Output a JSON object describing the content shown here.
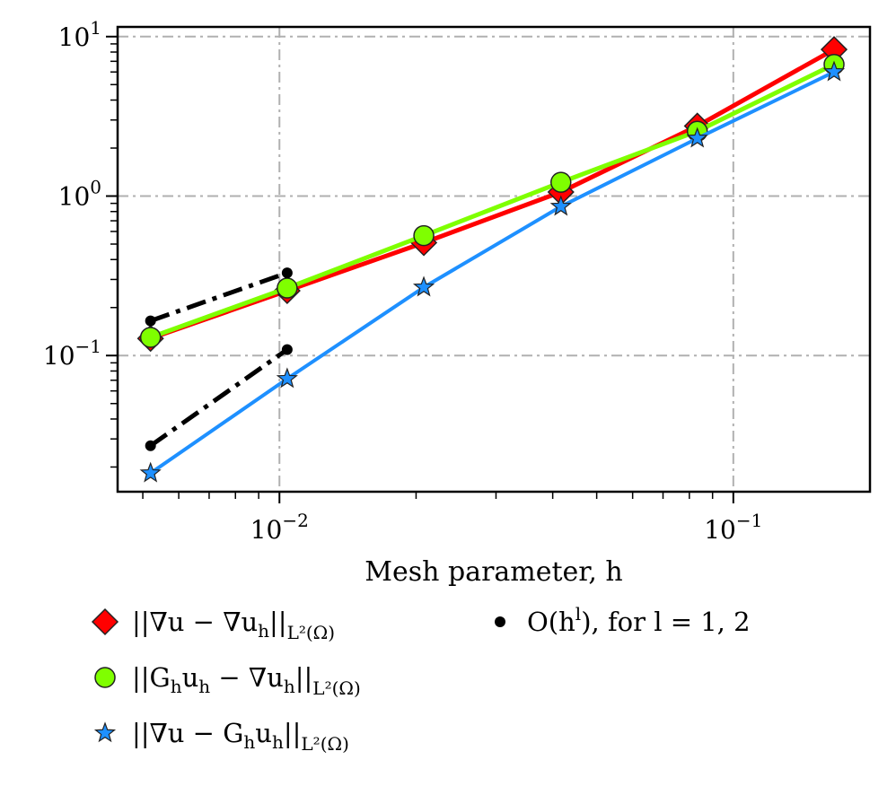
{
  "chart_data": {
    "type": "line",
    "xscale": "log",
    "yscale": "log",
    "xlim": [
      0.0044,
      0.2
    ],
    "ylim": [
      0.014,
      11.5
    ],
    "grid": true,
    "xlabel": "Mesh parameter, h",
    "ylabel": "",
    "x_ticks": [
      {
        "value": 0.01,
        "base": "10",
        "exp": "−2"
      },
      {
        "value": 0.1,
        "base": "10",
        "exp": "−1"
      }
    ],
    "y_ticks": [
      {
        "value": 0.1,
        "base": "10",
        "exp": "−1"
      },
      {
        "value": 1,
        "base": "10",
        "exp": "0"
      },
      {
        "value": 10,
        "base": "10",
        "exp": "1"
      }
    ],
    "series": [
      {
        "name": "||∇u − ∇u_h||_{L²(Ω)}",
        "label_parts": {
          "main": "||∇u − ∇u",
          "sub1": "h",
          "mid": "||",
          "sub2": "L²(Ω)"
        },
        "marker": "diamond",
        "color": "#ff0000",
        "x": [
          0.0052,
          0.0104,
          0.0208,
          0.0417,
          0.0833,
          0.1667
        ],
        "y": [
          0.128,
          0.255,
          0.51,
          1.06,
          2.75,
          8.3
        ]
      },
      {
        "name": "||G_h u_h − ∇u_h||_{L²(Ω)}",
        "label_parts": {
          "main": "||G",
          "sub1": "h",
          "mid": "u",
          "sub2": "h",
          "tail": " − ∇u",
          "sub3": "h",
          "tail2": "||",
          "sub4": "L²(Ω)"
        },
        "marker": "circle",
        "color": "#7fff00",
        "x": [
          0.0052,
          0.0104,
          0.0208,
          0.0417,
          0.0833,
          0.1667
        ],
        "y": [
          0.13,
          0.265,
          0.565,
          1.22,
          2.55,
          6.7
        ]
      },
      {
        "name": "||∇u − G_h u_h||_{L²(Ω)}",
        "label_parts": {
          "main": "||∇u − G",
          "sub1": "h",
          "mid": "u",
          "sub2": "h",
          "tail": "||",
          "sub3": "L²(Ω)"
        },
        "marker": "star",
        "color": "#1e90ff",
        "x": [
          0.0052,
          0.0104,
          0.0208,
          0.0417,
          0.0833,
          0.1667
        ],
        "y": [
          0.0183,
          0.0715,
          0.268,
          0.86,
          2.3,
          6.0
        ]
      },
      {
        "name": "O(h^l), for l = 1, 2",
        "label_parts": {
          "main": "O(h",
          "sup": "l",
          "tail": "), for l = 1, 2"
        },
        "marker": "dot",
        "color": "#000000",
        "style": "dashdot",
        "segments": [
          {
            "x": [
              0.0052,
              0.0104
            ],
            "y": [
              0.165,
              0.33
            ]
          },
          {
            "x": [
              0.0052,
              0.0104
            ],
            "y": [
              0.0272,
              0.109
            ]
          }
        ]
      }
    ]
  }
}
